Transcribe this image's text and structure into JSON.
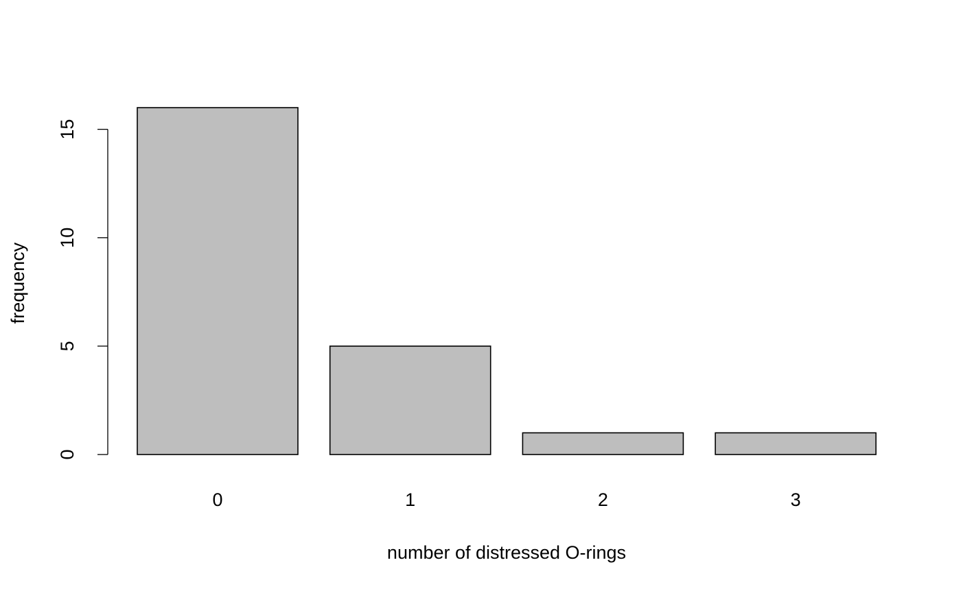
{
  "chart_data": {
    "type": "bar",
    "title": "",
    "xlabel": "number of distressed O-rings",
    "ylabel": "frequency",
    "categories": [
      "0",
      "1",
      "2",
      "3"
    ],
    "values": [
      16,
      5,
      1,
      1
    ],
    "ylim": [
      0,
      16
    ],
    "yticks": [
      0,
      5,
      10,
      15
    ],
    "y_tick_labels": [
      "0",
      "5",
      "10",
      "15"
    ],
    "grid": false,
    "legend": "none",
    "colors": {
      "bar_fill": "#bebebe",
      "bar_stroke": "#000000",
      "axis": "#000000",
      "background": "#ffffff"
    }
  }
}
